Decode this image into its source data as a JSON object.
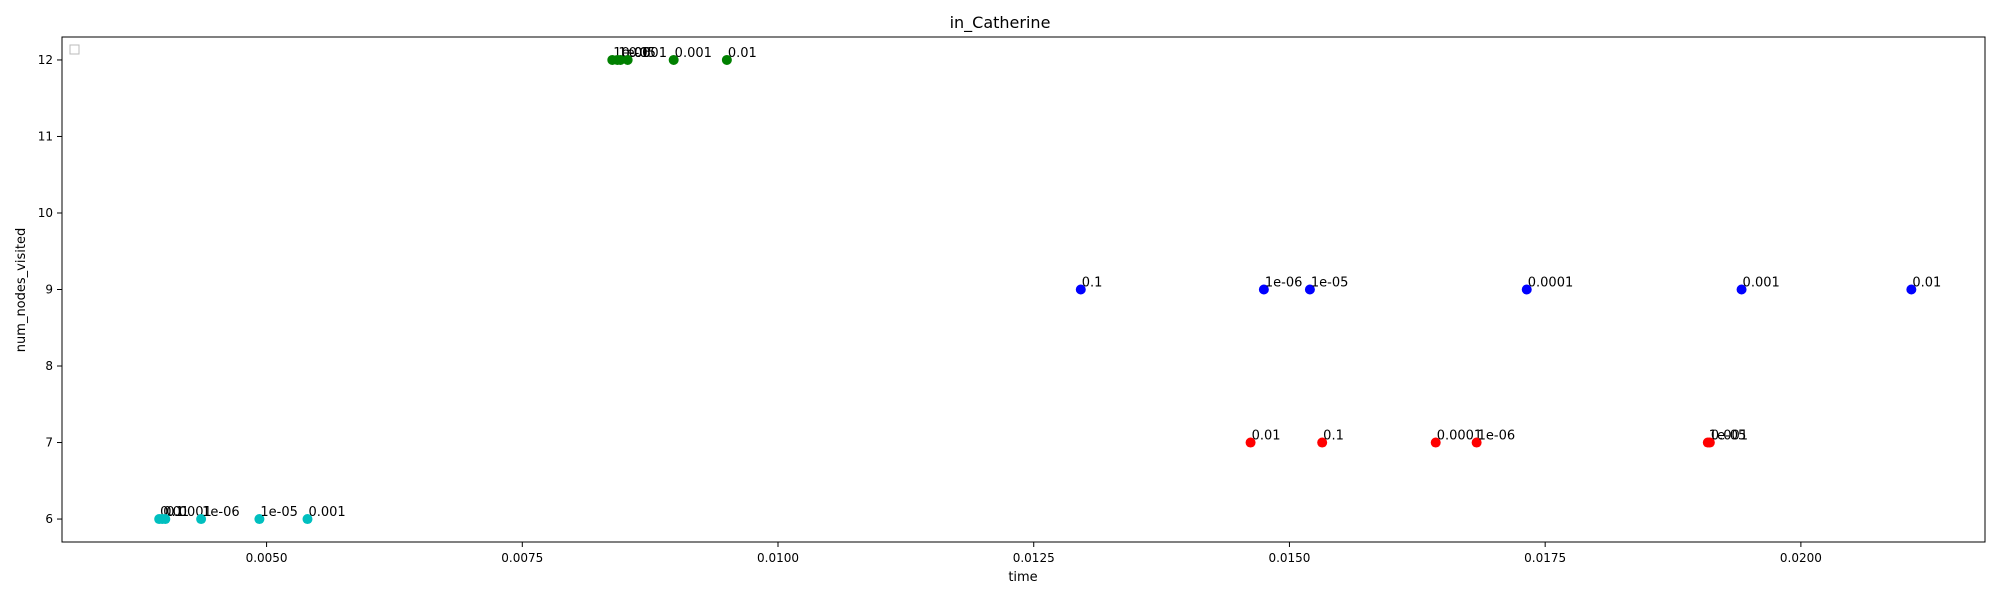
{
  "chart_data": {
    "type": "scatter",
    "title": "in_Catherine",
    "xlabel": "time",
    "ylabel": "num_nodes_visited",
    "xlim": [
      0.003,
      0.0218
    ],
    "ylim": [
      5.7,
      12.3
    ],
    "x_ticks": [
      "0.0050",
      "0.0075",
      "0.0100",
      "0.0125",
      "0.0150",
      "0.0175",
      "0.0200"
    ],
    "y_ticks": [
      "6",
      "7",
      "8",
      "9",
      "10",
      "11",
      "12"
    ],
    "grid": false,
    "legend": "top-left (empty)",
    "series": [
      {
        "color": "#008000",
        "points": [
          {
            "x": 0.00838,
            "y": 12,
            "label": "1e-06"
          },
          {
            "x": 0.00843,
            "y": 12,
            "label": "1e-05"
          },
          {
            "x": 0.00846,
            "y": 12,
            "label": "0.0001"
          },
          {
            "x": 0.00853,
            "y": 12,
            "label": "0.1"
          },
          {
            "x": 0.00898,
            "y": 12,
            "label": "0.001"
          },
          {
            "x": 0.0095,
            "y": 12,
            "label": "0.01"
          }
        ]
      },
      {
        "color": "#0000ff",
        "points": [
          {
            "x": 0.01296,
            "y": 9,
            "label": "0.1"
          },
          {
            "x": 0.01475,
            "y": 9,
            "label": "1e-06"
          },
          {
            "x": 0.0152,
            "y": 9,
            "label": "1e-05"
          },
          {
            "x": 0.01732,
            "y": 9,
            "label": "0.0001"
          },
          {
            "x": 0.01942,
            "y": 9,
            "label": "0.001"
          },
          {
            "x": 0.02108,
            "y": 9,
            "label": "0.01"
          }
        ]
      },
      {
        "color": "#ff0000",
        "points": [
          {
            "x": 0.01462,
            "y": 7,
            "label": "0.01"
          },
          {
            "x": 0.01532,
            "y": 7,
            "label": "0.1"
          },
          {
            "x": 0.01643,
            "y": 7,
            "label": "0.0001"
          },
          {
            "x": 0.01683,
            "y": 7,
            "label": "1e-06"
          },
          {
            "x": 0.01909,
            "y": 7,
            "label": "1e-05"
          },
          {
            "x": 0.01911,
            "y": 7,
            "label": "0.001"
          }
        ]
      },
      {
        "color": "#00bfbf",
        "points": [
          {
            "x": 0.00395,
            "y": 6,
            "label": "0.01"
          },
          {
            "x": 0.00398,
            "y": 6,
            "label": "0.1"
          },
          {
            "x": 0.00401,
            "y": 6,
            "label": "0.0001"
          },
          {
            "x": 0.00436,
            "y": 6,
            "label": "1e-06"
          },
          {
            "x": 0.00493,
            "y": 6,
            "label": "1e-05"
          },
          {
            "x": 0.0054,
            "y": 6,
            "label": "0.001"
          }
        ]
      }
    ]
  }
}
